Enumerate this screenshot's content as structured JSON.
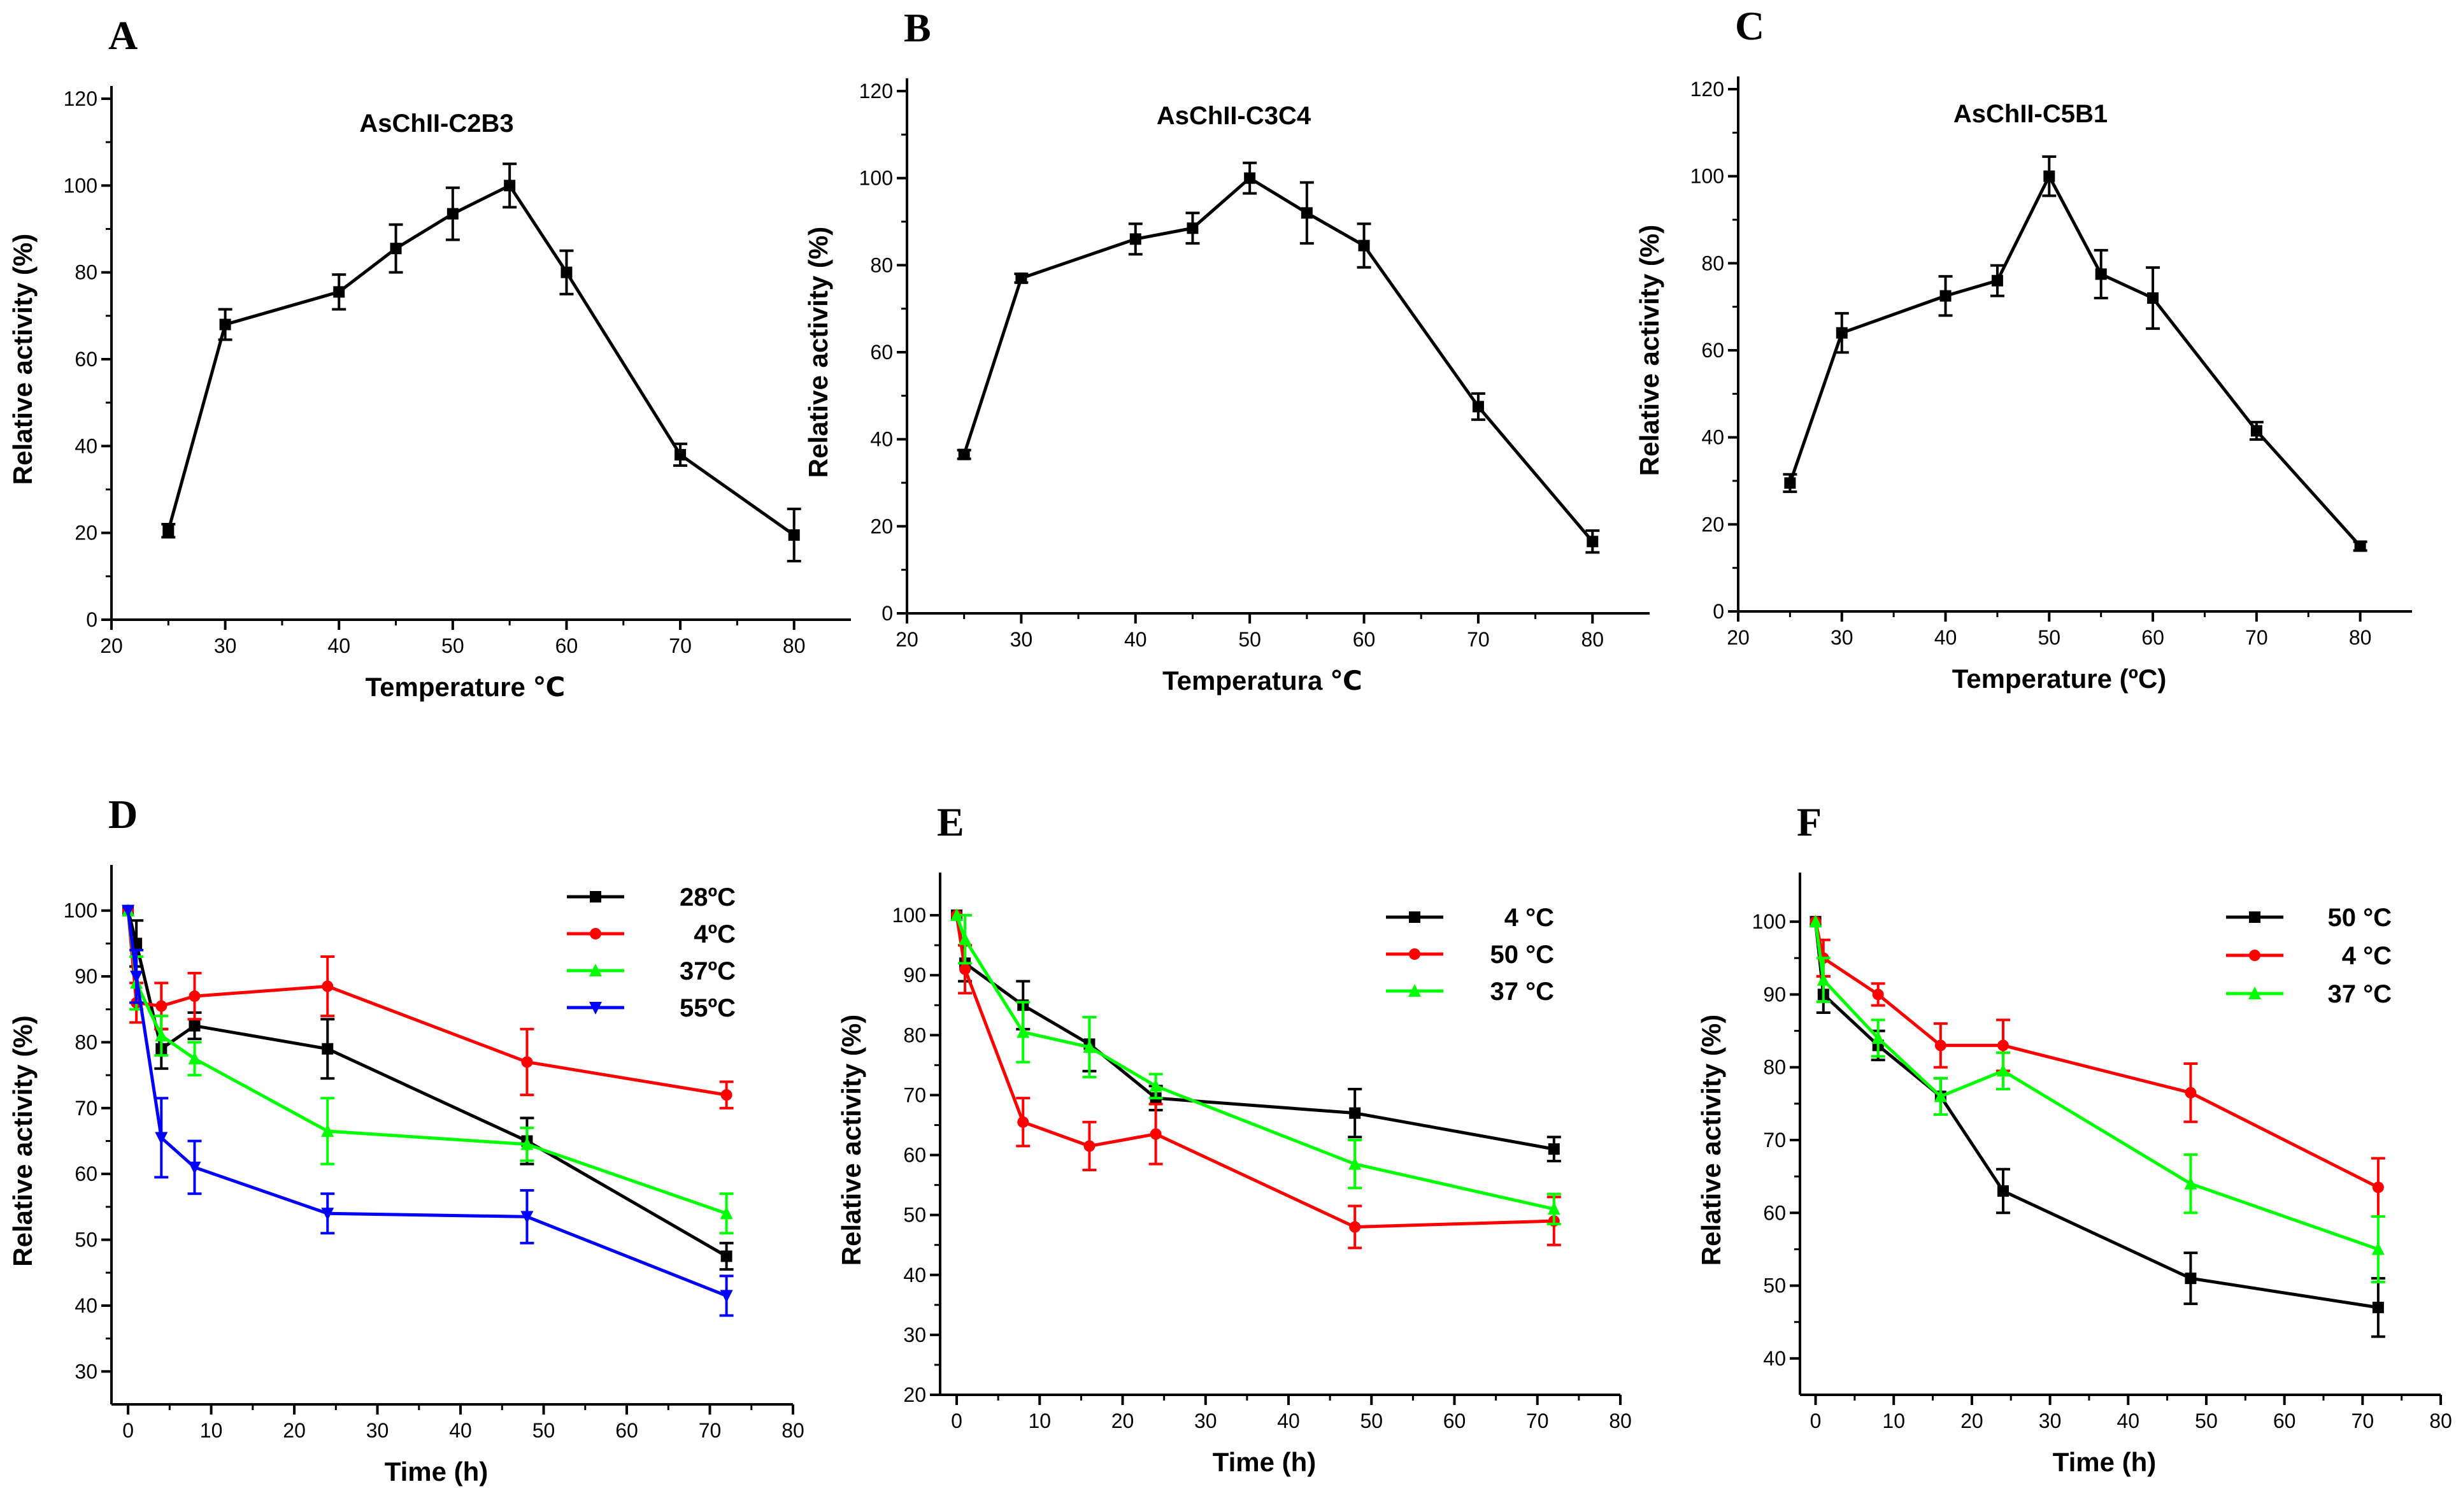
{
  "chart_data": [
    {
      "panel": "A",
      "type": "line",
      "title": "AsChII-C2B3",
      "xlabel": "Temperature ℃",
      "ylabel": "Relative activity (%)",
      "xlim": [
        20,
        85
      ],
      "ylim": [
        0,
        120
      ],
      "xticks": [
        "20",
        "30",
        "40",
        "50",
        "60",
        "70",
        "80"
      ],
      "yticks": [
        "0",
        "20",
        "40",
        "60",
        "80",
        "100",
        "120"
      ],
      "series": [
        {
          "name": "AsChII-C2B3",
          "color": "#000000",
          "marker": "square",
          "x": [
            25,
            30,
            40,
            45,
            50,
            55,
            60,
            70,
            80
          ],
          "values": [
            20.5,
            68,
            75.5,
            85.5,
            93.5,
            100,
            80,
            38,
            19.5
          ],
          "errors": [
            1.5,
            3.5,
            4,
            5.5,
            6,
            5,
            5,
            2.5,
            6
          ]
        }
      ]
    },
    {
      "panel": "B",
      "type": "line",
      "title": "AsChII-C3C4",
      "xlabel": "Temperatura ℃",
      "ylabel": "Relative activity (%)",
      "xlim": [
        20,
        85
      ],
      "ylim": [
        0,
        120
      ],
      "xticks": [
        "20",
        "30",
        "40",
        "50",
        "60",
        "70",
        "80"
      ],
      "yticks": [
        "0",
        "20",
        "40",
        "60",
        "80",
        "100",
        "120"
      ],
      "series": [
        {
          "name": "AsChII-C3C4",
          "color": "#000000",
          "marker": "square",
          "x": [
            25,
            30,
            40,
            45,
            50,
            55,
            60,
            70,
            80
          ],
          "values": [
            36.5,
            77,
            86,
            88.5,
            100,
            92,
            84.5,
            47.5,
            16.5
          ],
          "errors": [
            1,
            1,
            3.5,
            3.5,
            3.5,
            7,
            5,
            3,
            2.5
          ]
        }
      ]
    },
    {
      "panel": "C",
      "type": "line",
      "title": "AsChII-C5B1",
      "xlabel": "Temperature  (ºC)",
      "ylabel": "Relative activity (%)",
      "xlim": [
        20,
        85
      ],
      "ylim": [
        0,
        120
      ],
      "xticks": [
        "20",
        "30",
        "40",
        "50",
        "60",
        "70",
        "80"
      ],
      "yticks": [
        "0",
        "20",
        "40",
        "60",
        "80",
        "100",
        "120"
      ],
      "series": [
        {
          "name": "AsChII-C5B1",
          "color": "#000000",
          "marker": "square",
          "x": [
            25,
            30,
            40,
            45,
            50,
            55,
            60,
            70,
            80
          ],
          "values": [
            29.5,
            64,
            72.5,
            76,
            100,
            77.5,
            72,
            41.5,
            15
          ],
          "errors": [
            2,
            4.5,
            4.5,
            3.5,
            4.5,
            5.5,
            7,
            2,
            1
          ]
        }
      ]
    },
    {
      "panel": "D",
      "type": "line",
      "title": "",
      "xlabel": "Time (h)",
      "ylabel": "Relative activity (%)",
      "xlim": [
        -2,
        80
      ],
      "ylim": [
        25,
        105
      ],
      "xticks": [
        "0",
        "10",
        "20",
        "30",
        "40",
        "50",
        "60",
        "70",
        "80"
      ],
      "yticks": [
        "30",
        "40",
        "50",
        "60",
        "70",
        "80",
        "90",
        "100"
      ],
      "legend": "top-right",
      "series": [
        {
          "name": "28ºC",
          "color": "#000000",
          "marker": "square",
          "x": [
            0,
            1,
            4,
            8,
            24,
            48,
            72
          ],
          "values": [
            100,
            95,
            79,
            82.5,
            79,
            65,
            47.5
          ],
          "errors": [
            0,
            3.5,
            3,
            2,
            4.5,
            3.5,
            2
          ]
        },
        {
          "name": "4ºC",
          "color": "#ff0000",
          "marker": "circle",
          "x": [
            0,
            1,
            4,
            8,
            24,
            48,
            72
          ],
          "values": [
            100,
            86,
            85.5,
            87,
            88.5,
            77,
            72
          ],
          "errors": [
            0,
            3,
            3.5,
            3.5,
            4.5,
            5,
            2
          ]
        },
        {
          "name": "37ºC",
          "color": "#00ff00",
          "marker": "triangle-up",
          "x": [
            0,
            1,
            4,
            8,
            24,
            48,
            72
          ],
          "values": [
            100,
            89,
            81,
            77.5,
            66.5,
            64.5,
            54
          ],
          "errors": [
            0,
            4,
            3,
            2.5,
            5,
            2.5,
            3
          ]
        },
        {
          "name": "55ºC",
          "color": "#0000ff",
          "marker": "triangle-down",
          "x": [
            0,
            1,
            4,
            8,
            24,
            48,
            72
          ],
          "values": [
            100,
            90,
            65.5,
            61,
            54,
            53.5,
            41.5
          ],
          "errors": [
            0,
            4,
            6,
            4,
            3,
            4,
            3
          ]
        }
      ]
    },
    {
      "panel": "E",
      "type": "line",
      "title": "",
      "xlabel": "Time (h)",
      "ylabel": "Relative activity (%)",
      "xlim": [
        -2,
        80
      ],
      "ylim": [
        20,
        105
      ],
      "xticks": [
        "0",
        "10",
        "20",
        "30",
        "40",
        "50",
        "60",
        "70",
        "80"
      ],
      "yticks": [
        "20",
        "30",
        "40",
        "50",
        "60",
        "70",
        "80",
        "90",
        "100"
      ],
      "legend": "top-right",
      "series": [
        {
          "name": "4 °C",
          "color": "#000000",
          "marker": "square",
          "x": [
            0,
            1,
            8,
            16,
            24,
            48,
            72
          ],
          "values": [
            100,
            92,
            85,
            78.5,
            69.5,
            67,
            61
          ],
          "errors": [
            0,
            3,
            4,
            4.5,
            2,
            4,
            2
          ]
        },
        {
          "name": "50 °C",
          "color": "#ff0000",
          "marker": "circle",
          "x": [
            0,
            1,
            8,
            16,
            24,
            48,
            72
          ],
          "values": [
            100,
            91,
            65.5,
            61.5,
            63.5,
            48,
            49
          ],
          "errors": [
            0,
            4,
            4,
            4,
            5,
            3.5,
            4
          ]
        },
        {
          "name": "37 °C",
          "color": "#00ff00",
          "marker": "triangle-up",
          "x": [
            0,
            1,
            8,
            16,
            24,
            48,
            72
          ],
          "values": [
            100,
            96,
            80.5,
            78,
            71.5,
            58.5,
            51
          ],
          "errors": [
            0,
            4,
            5,
            5,
            2,
            4,
            2.5
          ]
        }
      ]
    },
    {
      "panel": "F",
      "type": "line",
      "title": "",
      "xlabel": "Time (h)",
      "ylabel": "Relative activity (%)",
      "xlim": [
        -2,
        80
      ],
      "ylim": [
        35,
        105
      ],
      "xticks": [
        "0",
        "10",
        "20",
        "30",
        "40",
        "50",
        "60",
        "70",
        "80"
      ],
      "yticks": [
        "40",
        "50",
        "60",
        "70",
        "80",
        "90",
        "100"
      ],
      "legend": "top-right",
      "series": [
        {
          "name": "50 °C",
          "color": "#000000",
          "marker": "square",
          "x": [
            0,
            1,
            8,
            16,
            24,
            48,
            72
          ],
          "values": [
            100,
            90,
            83,
            76,
            63,
            51,
            47
          ],
          "errors": [
            0,
            2.5,
            2,
            2.5,
            3,
            3.5,
            4
          ]
        },
        {
          "name": "4 °C",
          "color": "#ff0000",
          "marker": "circle",
          "x": [
            0,
            1,
            8,
            16,
            24,
            48,
            72
          ],
          "values": [
            100,
            95,
            90,
            83,
            83,
            76.5,
            63.5
          ],
          "errors": [
            0,
            2.5,
            1.5,
            3,
            3.5,
            4,
            4
          ]
        },
        {
          "name": "37 °C",
          "color": "#00ff00",
          "marker": "triangle-up",
          "x": [
            0,
            1,
            8,
            16,
            24,
            48,
            72
          ],
          "values": [
            100,
            92,
            84,
            76,
            79.5,
            64,
            55
          ],
          "errors": [
            0,
            3,
            2.5,
            2.5,
            2.5,
            4,
            4.5
          ]
        }
      ]
    }
  ]
}
